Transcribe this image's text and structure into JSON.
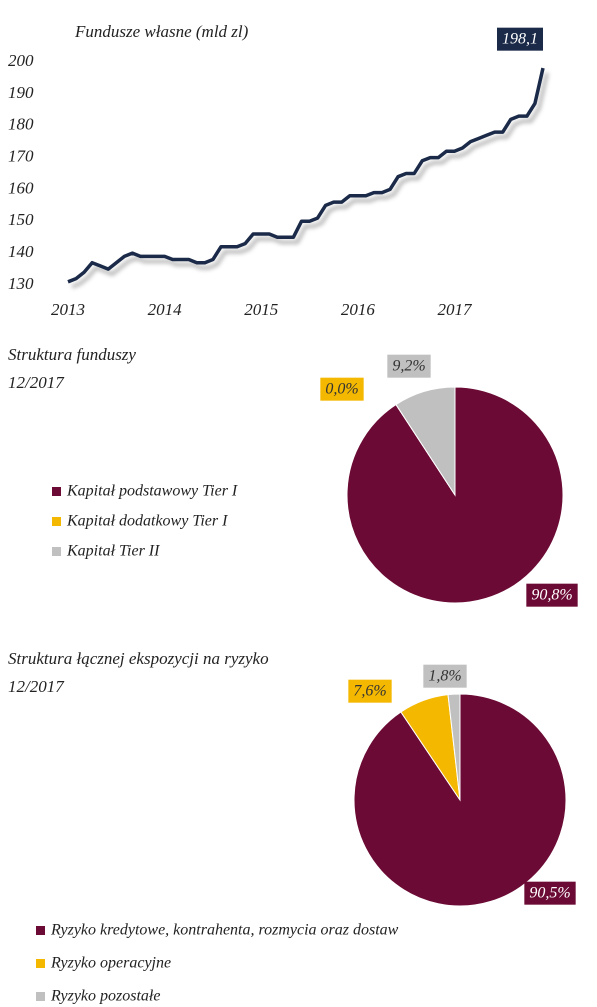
{
  "chart_data": [
    {
      "type": "line",
      "title": "Fundusze własne (mld zl)",
      "categories": [
        "2013",
        null,
        null,
        null,
        null,
        null,
        null,
        null,
        null,
        null,
        null,
        null,
        "2014",
        null,
        null,
        null,
        null,
        null,
        null,
        null,
        null,
        null,
        null,
        null,
        "2015",
        null,
        null,
        null,
        null,
        null,
        null,
        null,
        null,
        null,
        null,
        null,
        "2016",
        null,
        null,
        null,
        null,
        null,
        null,
        null,
        null,
        null,
        null,
        null,
        "2017",
        null,
        null,
        null,
        null,
        null,
        null,
        null,
        null,
        null,
        null,
        null
      ],
      "values": [
        131,
        132,
        134,
        137,
        136,
        135,
        137,
        139,
        140,
        139,
        139,
        139,
        139,
        138,
        138,
        138,
        137,
        137,
        138,
        142,
        142,
        142,
        143,
        146,
        146,
        146,
        145,
        145,
        145,
        150,
        150,
        151,
        155,
        156,
        156,
        158,
        158,
        158,
        159,
        159,
        160,
        164,
        165,
        165,
        169,
        170,
        170,
        172,
        172,
        173,
        175,
        176,
        177,
        178,
        178,
        182,
        183,
        183,
        187,
        198.1
      ],
      "value_labels": [
        null,
        null,
        null,
        null,
        null,
        null,
        null,
        null,
        null,
        null,
        null,
        null,
        null,
        null,
        null,
        null,
        null,
        null,
        null,
        null,
        null,
        null,
        null,
        null,
        null,
        null,
        null,
        null,
        null,
        null,
        null,
        null,
        null,
        null,
        null,
        null,
        null,
        null,
        null,
        null,
        null,
        null,
        null,
        null,
        null,
        null,
        null,
        null,
        null,
        null,
        null,
        null,
        null,
        null,
        null,
        null,
        null,
        null,
        null,
        "198,1"
      ],
      "color": "#1a2a48",
      "ylim": [
        130,
        200
      ],
      "yticks": [
        130,
        140,
        150,
        160,
        170,
        180,
        190,
        200
      ]
    },
    {
      "type": "pie",
      "title": "Struktura funduszy",
      "subtitle": "12/2017",
      "categories": [
        "Kapitał podstawowy Tier I",
        "Kapitał dodatkowy Tier I",
        "Kapitał Tier II"
      ],
      "values": [
        90.8,
        0.0,
        9.2
      ],
      "value_labels": [
        "90,8%",
        "0,0%",
        "9,2%"
      ],
      "colors": [
        "#6b0a34",
        "#f5b800",
        "#c0c0c0"
      ]
    },
    {
      "type": "pie",
      "title": "Struktura łącznej ekspozycji na ryzyko",
      "subtitle": "12/2017",
      "categories": [
        "Ryzyko kredytowe, kontrahenta, rozmycia oraz dostaw",
        "Ryzyko operacyjne",
        "Ryzyko pozostałe"
      ],
      "values": [
        90.5,
        7.6,
        1.8
      ],
      "value_labels": [
        "90,5%",
        "7,6%",
        "1,8%"
      ],
      "colors": [
        "#6b0a34",
        "#f5b800",
        "#c0c0c0"
      ]
    }
  ]
}
